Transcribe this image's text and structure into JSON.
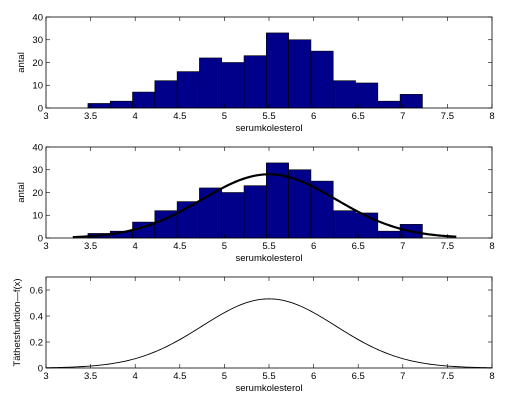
{
  "chart_data": [
    {
      "type": "bar",
      "xlabel": "serumkolesterol",
      "ylabel": "antal",
      "xlim": [
        3,
        8
      ],
      "ylim": [
        0,
        40
      ],
      "xticks": [
        "3",
        "3.5",
        "4",
        "4.5",
        "5",
        "5.5",
        "6",
        "6.5",
        "7",
        "7.5",
        "8"
      ],
      "yticks": [
        "0",
        "10",
        "20",
        "30",
        "40"
      ],
      "bar_color": "#00008b",
      "bin_edges": [
        3.47,
        3.72,
        3.97,
        4.22,
        4.47,
        4.72,
        4.97,
        5.22,
        5.47,
        5.72,
        5.97,
        6.22,
        6.47,
        6.72,
        6.97,
        7.22
      ],
      "values": [
        2,
        3,
        7,
        12,
        16,
        22,
        20,
        23,
        33,
        30,
        25,
        12,
        11,
        3,
        6
      ]
    },
    {
      "type": "bar",
      "xlabel": "serumkolesterol",
      "ylabel": "antal",
      "xlim": [
        3,
        8
      ],
      "ylim": [
        0,
        40
      ],
      "xticks": [
        "3",
        "3.5",
        "4",
        "4.5",
        "5",
        "5.5",
        "6",
        "6.5",
        "7",
        "7.5",
        "8"
      ],
      "yticks": [
        "0",
        "10",
        "20",
        "30",
        "40"
      ],
      "bar_color": "#00008b",
      "bin_edges": [
        3.47,
        3.72,
        3.97,
        4.22,
        4.47,
        4.72,
        4.97,
        5.22,
        5.47,
        5.72,
        5.97,
        6.22,
        6.47,
        6.72,
        6.97,
        7.22
      ],
      "values": [
        2,
        3,
        7,
        12,
        16,
        22,
        20,
        23,
        33,
        30,
        25,
        12,
        11,
        3,
        6
      ],
      "curve": {
        "type": "normal",
        "mean": 5.5,
        "sd": 0.75,
        "peak": 28,
        "x_range": [
          3.3,
          7.6
        ],
        "color": "#000000"
      }
    },
    {
      "type": "line",
      "xlabel": "serumkolesterol",
      "ylabel": "Täthetsfunktion—f(x)",
      "xlim": [
        3,
        8
      ],
      "ylim": [
        0,
        0.7
      ],
      "xticks": [
        "3",
        "3.5",
        "4",
        "4.5",
        "5",
        "5.5",
        "6",
        "6.5",
        "7",
        "7.5",
        "8"
      ],
      "yticks": [
        "0",
        "0.2",
        "0.4",
        "0.6"
      ],
      "curve": {
        "type": "normal",
        "mean": 5.5,
        "sd": 0.75,
        "x_range": [
          3,
          8
        ],
        "color": "#000000"
      }
    }
  ]
}
